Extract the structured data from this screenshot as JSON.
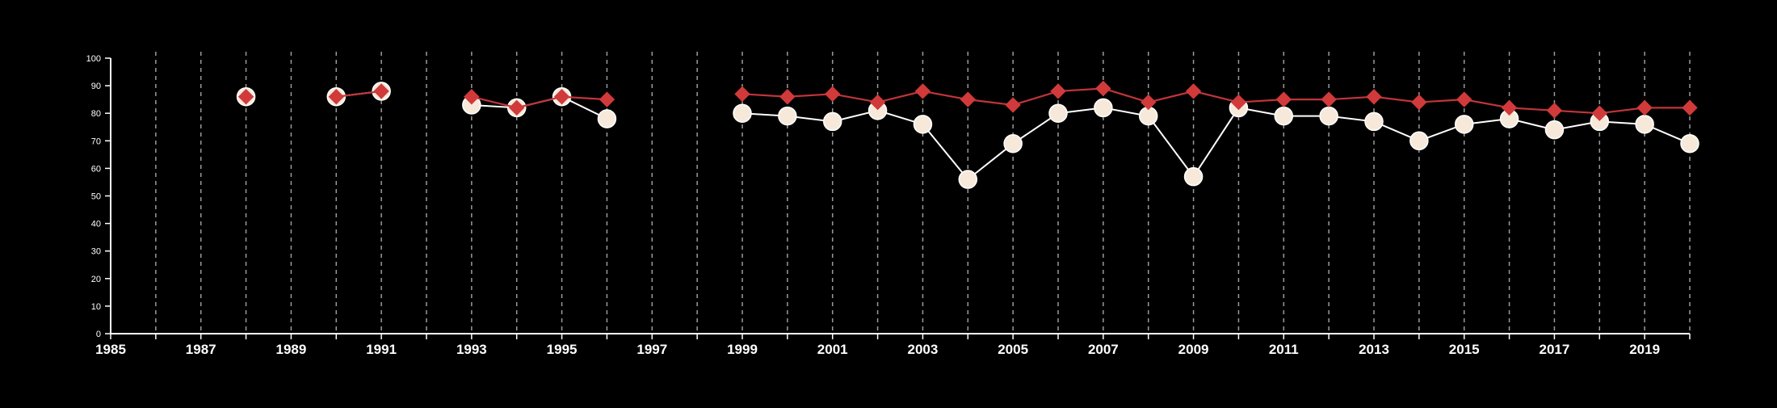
{
  "chart_data": {
    "type": "line",
    "title": "",
    "xlabel": "",
    "ylabel": "",
    "xlim": [
      1985,
      2020
    ],
    "ylim": [
      0,
      100
    ],
    "x_ticks": [
      1986,
      1987,
      1988,
      1989,
      1990,
      1991,
      1992,
      1993,
      1994,
      1995,
      1996,
      1997,
      1998,
      1999,
      2000,
      2001,
      2002,
      2003,
      2004,
      2005,
      2006,
      2007,
      2008,
      2009,
      2010,
      2011,
      2012,
      2013,
      2014,
      2015,
      2016,
      2017,
      2018,
      2019,
      2020
    ],
    "x_tick_labels": [
      {
        "x": 1985,
        "label": "1985"
      },
      {
        "x": 1987,
        "label": "1987"
      },
      {
        "x": 1989,
        "label": "1989"
      },
      {
        "x": 1991,
        "label": "1991"
      },
      {
        "x": 1993,
        "label": "1993"
      },
      {
        "x": 1995,
        "label": "1995"
      },
      {
        "x": 1997,
        "label": "1997"
      },
      {
        "x": 1999,
        "label": "1999"
      },
      {
        "x": 2001,
        "label": "2001"
      },
      {
        "x": 2003,
        "label": "2003"
      },
      {
        "x": 2005,
        "label": "2005"
      },
      {
        "x": 2007,
        "label": "2007"
      },
      {
        "x": 2009,
        "label": "2009"
      },
      {
        "x": 2011,
        "label": "2011"
      },
      {
        "x": 2013,
        "label": "2013"
      },
      {
        "x": 2015,
        "label": "2015"
      },
      {
        "x": 2017,
        "label": "2017"
      },
      {
        "x": 2019,
        "label": "2019"
      }
    ],
    "y_ticks": [
      {
        "y": 0,
        "label": "0"
      },
      {
        "y": 10,
        "label": "10"
      },
      {
        "y": 20,
        "label": "20"
      },
      {
        "y": 30,
        "label": "30"
      },
      {
        "y": 40,
        "label": "40"
      },
      {
        "y": 50,
        "label": "50"
      },
      {
        "y": 60,
        "label": "60"
      },
      {
        "y": 70,
        "label": "70"
      },
      {
        "y": 80,
        "label": "80"
      },
      {
        "y": 90,
        "label": "90"
      },
      {
        "y": 100,
        "label": "100"
      }
    ],
    "grid": "vertical dashed",
    "legend": "none",
    "colors": {
      "background": "#000000",
      "axis": "#ffffff",
      "grid": "#9a9a9a",
      "series_circle_fill": "#f7e9da",
      "series_circle_line": "#ffffff",
      "series_diamond_fill": "#d13a3a",
      "series_diamond_line": "#c0353a"
    },
    "series": [
      {
        "marker": "circle",
        "segments": [
          [
            {
              "x": 1988,
              "y": 86
            }
          ],
          [
            {
              "x": 1990,
              "y": 86
            },
            {
              "x": 1991,
              "y": 88
            }
          ],
          [
            {
              "x": 1993,
              "y": 83
            },
            {
              "x": 1994,
              "y": 82
            },
            {
              "x": 1995,
              "y": 86
            },
            {
              "x": 1996,
              "y": 78
            }
          ],
          [
            {
              "x": 1999,
              "y": 80
            },
            {
              "x": 2000,
              "y": 79
            },
            {
              "x": 2001,
              "y": 77
            },
            {
              "x": 2002,
              "y": 81
            },
            {
              "x": 2003,
              "y": 76
            },
            {
              "x": 2004,
              "y": 56
            },
            {
              "x": 2005,
              "y": 69
            },
            {
              "x": 2006,
              "y": 80
            },
            {
              "x": 2007,
              "y": 82
            },
            {
              "x": 2008,
              "y": 79
            },
            {
              "x": 2009,
              "y": 57
            },
            {
              "x": 2010,
              "y": 82
            },
            {
              "x": 2011,
              "y": 79
            },
            {
              "x": 2012,
              "y": 79
            },
            {
              "x": 2013,
              "y": 77
            },
            {
              "x": 2014,
              "y": 70
            },
            {
              "x": 2015,
              "y": 76
            },
            {
              "x": 2016,
              "y": 78
            },
            {
              "x": 2017,
              "y": 74
            },
            {
              "x": 2018,
              "y": 77
            },
            {
              "x": 2019,
              "y": 76
            },
            {
              "x": 2020,
              "y": 69
            }
          ]
        ]
      },
      {
        "marker": "diamond",
        "segments": [
          [
            {
              "x": 1988,
              "y": 86
            }
          ],
          [
            {
              "x": 1990,
              "y": 86
            },
            {
              "x": 1991,
              "y": 88
            }
          ],
          [
            {
              "x": 1993,
              "y": 86
            },
            {
              "x": 1994,
              "y": 82
            },
            {
              "x": 1995,
              "y": 86
            },
            {
              "x": 1996,
              "y": 85
            }
          ],
          [
            {
              "x": 1999,
              "y": 87
            },
            {
              "x": 2000,
              "y": 86
            },
            {
              "x": 2001,
              "y": 87
            },
            {
              "x": 2002,
              "y": 84
            },
            {
              "x": 2003,
              "y": 88
            },
            {
              "x": 2004,
              "y": 85
            },
            {
              "x": 2005,
              "y": 83
            },
            {
              "x": 2006,
              "y": 88
            },
            {
              "x": 2007,
              "y": 89
            },
            {
              "x": 2008,
              "y": 84
            },
            {
              "x": 2009,
              "y": 88
            },
            {
              "x": 2010,
              "y": 84
            },
            {
              "x": 2011,
              "y": 85
            },
            {
              "x": 2012,
              "y": 85
            },
            {
              "x": 2013,
              "y": 86
            },
            {
              "x": 2014,
              "y": 84
            },
            {
              "x": 2015,
              "y": 85
            },
            {
              "x": 2016,
              "y": 82
            },
            {
              "x": 2017,
              "y": 81
            },
            {
              "x": 2018,
              "y": 80
            },
            {
              "x": 2019,
              "y": 82
            },
            {
              "x": 2020,
              "y": 82
            }
          ]
        ]
      }
    ]
  }
}
